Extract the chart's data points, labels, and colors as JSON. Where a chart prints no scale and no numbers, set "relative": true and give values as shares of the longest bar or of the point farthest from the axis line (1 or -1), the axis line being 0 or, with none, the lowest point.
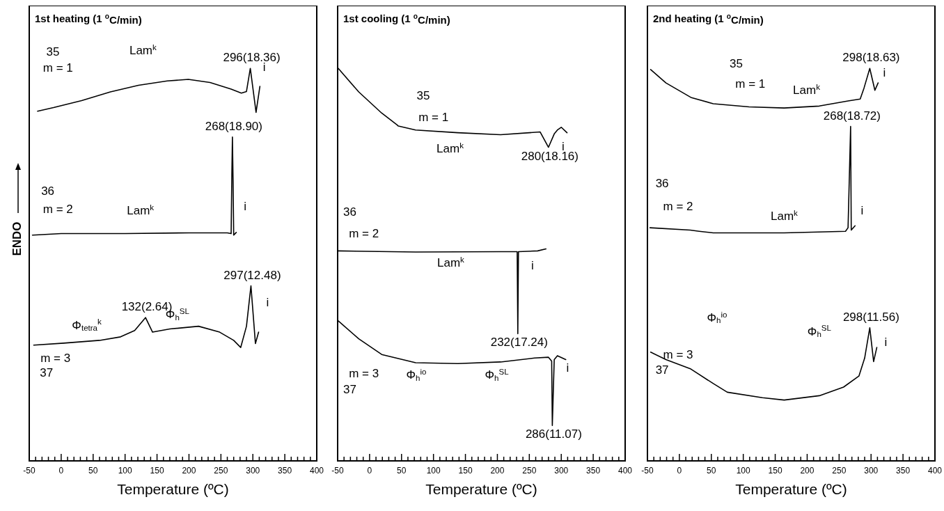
{
  "chart_data": [
    {
      "type": "line",
      "title": "1st heating (1 $^{o}$C/min)",
      "xlabel": "Temperature (ºC)",
      "ylabel": "ENDO",
      "relative": true,
      "xlim": [
        -50,
        400
      ],
      "xticks": [
        -50,
        {
          "value": -40,
          "label": null
        },
        {
          "value": -30,
          "label": null
        },
        {
          "value": -20,
          "label": null
        },
        {
          "value": -10,
          "label": null
        },
        0,
        {
          "value": 10,
          "label": null
        },
        {
          "value": 20,
          "label": null
        },
        {
          "value": 30,
          "label": null
        },
        {
          "value": 40,
          "label": null
        },
        50,
        {
          "value": 60,
          "label": null
        },
        {
          "value": 70,
          "label": null
        },
        {
          "value": 80,
          "label": null
        },
        {
          "value": 90,
          "label": null
        },
        100,
        {
          "value": 110,
          "label": null
        },
        {
          "value": 120,
          "label": null
        },
        {
          "value": 130,
          "label": null
        },
        {
          "value": 140,
          "label": null
        },
        150,
        {
          "value": 160,
          "label": null
        },
        {
          "value": 170,
          "label": null
        },
        {
          "value": 180,
          "label": null
        },
        {
          "value": 190,
          "label": null
        },
        200,
        {
          "value": 210,
          "label": null
        },
        {
          "value": 220,
          "label": null
        },
        {
          "value": 230,
          "label": null
        },
        {
          "value": 240,
          "label": null
        },
        250,
        {
          "value": 260,
          "label": null
        },
        {
          "value": 270,
          "label": null
        },
        {
          "value": 280,
          "label": null
        },
        {
          "value": 290,
          "label": null
        },
        300,
        {
          "value": 310,
          "label": null
        },
        {
          "value": 320,
          "label": null
        },
        {
          "value": 330,
          "label": null
        },
        {
          "value": 340,
          "label": null
        },
        350,
        {
          "value": 360,
          "label": null
        },
        {
          "value": 370,
          "label": null
        },
        {
          "value": 380,
          "label": null
        },
        {
          "value": 390,
          "label": null
        },
        400
      ],
      "series": [
        {
          "color": "#000000",
          "x": [
            -37,
            -12,
            32,
            77,
            121,
            166,
            199,
            233,
            266,
            282,
            290,
            296,
            305,
            311
          ],
          "values": [
            0.891,
            0.9,
            0.918,
            0.94,
            0.957,
            0.968,
            0.972,
            0.964,
            0.947,
            0.937,
            0.941,
            1,
            0.888,
            0.954
          ]
        },
        {
          "color": "#000000",
          "x": [
            -45,
            0,
            100,
            200,
            260,
            266,
            267,
            268,
            269,
            270,
            274
          ],
          "values": [
            0.575,
            0.579,
            0.579,
            0.581,
            0.581,
            0.579,
            0.716,
            0.825,
            0.716,
            0.575,
            0.582
          ]
        },
        {
          "color": "#000000",
          "x": [
            -43,
            4,
            60,
            93,
            115,
            132,
            143,
            170,
            215,
            248,
            270,
            281,
            290,
            297,
            304,
            309
          ],
          "values": [
            0.295,
            0.3,
            0.307,
            0.316,
            0.332,
            0.365,
            0.328,
            0.336,
            0.343,
            0.328,
            0.307,
            0.289,
            0.343,
            0.446,
            0.299,
            0.328
          ]
        }
      ],
      "annotations": [
        "35",
        "m = 1",
        "Lam$^{k}$",
        "i",
        "36",
        "m = 2",
        "Lam$^{k}$",
        "i",
        "Φ$_{h}$$^{SL}$",
        "Φ$_{tetra}$$^{k}$",
        "i",
        "m = 3",
        "37",
        {
          "text": "296(18.36)",
          "x": 296,
          "y": 1
        },
        {
          "text": "268(18.90)",
          "x": 268,
          "y": 0.825
        },
        {
          "text": "297(12.48)",
          "x": 297,
          "y": 0.446
        },
        {
          "text": "132(2.64)",
          "x": 132,
          "y": 0.365
        }
      ]
    },
    {
      "type": "line",
      "title": "1st cooling (1 $^{o}$C/min)",
      "xlabel": "Temperature (ºC)",
      "relative": true,
      "xlim": [
        -50,
        400
      ],
      "xticks": [
        -50,
        {
          "value": -40,
          "label": null
        },
        {
          "value": -30,
          "label": null
        },
        {
          "value": -20,
          "label": null
        },
        {
          "value": -10,
          "label": null
        },
        0,
        {
          "value": 10,
          "label": null
        },
        {
          "value": 20,
          "label": null
        },
        {
          "value": 30,
          "label": null
        },
        {
          "value": 40,
          "label": null
        },
        50,
        {
          "value": 60,
          "label": null
        },
        {
          "value": 70,
          "label": null
        },
        {
          "value": 80,
          "label": null
        },
        {
          "value": 90,
          "label": null
        },
        100,
        {
          "value": 110,
          "label": null
        },
        {
          "value": 120,
          "label": null
        },
        {
          "value": 130,
          "label": null
        },
        {
          "value": 140,
          "label": null
        },
        150,
        {
          "value": 160,
          "label": null
        },
        {
          "value": 170,
          "label": null
        },
        {
          "value": 180,
          "label": null
        },
        {
          "value": 190,
          "label": null
        },
        200,
        {
          "value": 210,
          "label": null
        },
        {
          "value": 220,
          "label": null
        },
        {
          "value": 230,
          "label": null
        },
        {
          "value": 240,
          "label": null
        },
        250,
        {
          "value": 260,
          "label": null
        },
        {
          "value": 270,
          "label": null
        },
        {
          "value": 280,
          "label": null
        },
        {
          "value": 290,
          "label": null
        },
        300,
        {
          "value": 310,
          "label": null
        },
        {
          "value": 320,
          "label": null
        },
        {
          "value": 330,
          "label": null
        },
        {
          "value": 340,
          "label": null
        },
        350,
        {
          "value": 360,
          "label": null
        },
        {
          "value": 370,
          "label": null
        },
        {
          "value": 380,
          "label": null
        },
        {
          "value": 390,
          "label": null
        },
        400
      ],
      "series": [
        {
          "color": "#000000",
          "x": [
            -49,
            -17,
            19,
            43,
            45,
            72,
            138,
            205,
            267,
            280,
            289,
            294,
            300,
            309
          ],
          "values": [
            1,
            0.94,
            0.886,
            0.856,
            0.853,
            0.843,
            0.836,
            0.831,
            0.838,
            0.799,
            0.833,
            0.843,
            0.85,
            0.836
          ]
        },
        {
          "color": "#000000",
          "x": [
            -50,
            72,
            205,
            231,
            232,
            233,
            263,
            276
          ],
          "values": [
            0.535,
            0.532,
            0.533,
            0.533,
            0.324,
            0.533,
            0.535,
            0.54
          ]
        },
        {
          "color": "#000000",
          "x": [
            -50,
            -17,
            19,
            72,
            138,
            205,
            258,
            280,
            285,
            286,
            289,
            294,
            307
          ],
          "values": [
            0.358,
            0.311,
            0.271,
            0.25,
            0.248,
            0.252,
            0.262,
            0.264,
            0.254,
            0.09,
            0.258,
            0.268,
            0.258
          ]
        }
      ],
      "annotations": [
        "35",
        "m = 1",
        "Lam$^{k}$",
        "i",
        "36",
        "m = 2",
        "Lam$^{k}$",
        "i",
        "m = 3",
        "Φ$_{h}$$^{io}$",
        "Φ$_{h}$$^{SL}$",
        "i",
        "37",
        {
          "text": "280(18.16)",
          "x": 280,
          "y": 0.799
        },
        {
          "text": "232(17.24)",
          "x": 232,
          "y": 0.324
        },
        {
          "text": "286(11.07)",
          "x": 286,
          "y": 0.09
        }
      ]
    },
    {
      "type": "line",
      "title": "2nd heating (1 $^{o}$C/min)",
      "xlabel": "Temperature (ºC)",
      "relative": true,
      "xlim": [
        -50,
        400
      ],
      "xticks": [
        -50,
        {
          "value": -40,
          "label": null
        },
        {
          "value": -30,
          "label": null
        },
        {
          "value": -20,
          "label": null
        },
        {
          "value": -10,
          "label": null
        },
        0,
        {
          "value": 10,
          "label": null
        },
        {
          "value": 20,
          "label": null
        },
        {
          "value": 30,
          "label": null
        },
        {
          "value": 40,
          "label": null
        },
        50,
        {
          "value": 60,
          "label": null
        },
        {
          "value": 70,
          "label": null
        },
        {
          "value": 80,
          "label": null
        },
        {
          "value": 90,
          "label": null
        },
        100,
        {
          "value": 110,
          "label": null
        },
        {
          "value": 120,
          "label": null
        },
        {
          "value": 130,
          "label": null
        },
        {
          "value": 140,
          "label": null
        },
        150,
        {
          "value": 160,
          "label": null
        },
        {
          "value": 170,
          "label": null
        },
        {
          "value": 180,
          "label": null
        },
        {
          "value": 190,
          "label": null
        },
        200,
        {
          "value": 210,
          "label": null
        },
        {
          "value": 220,
          "label": null
        },
        {
          "value": 230,
          "label": null
        },
        {
          "value": 240,
          "label": null
        },
        250,
        {
          "value": 260,
          "label": null
        },
        {
          "value": 270,
          "label": null
        },
        {
          "value": 280,
          "label": null
        },
        {
          "value": 290,
          "label": null
        },
        300,
        {
          "value": 310,
          "label": null
        },
        {
          "value": 320,
          "label": null
        },
        {
          "value": 330,
          "label": null
        },
        {
          "value": 340,
          "label": null
        },
        350,
        {
          "value": 360,
          "label": null
        },
        {
          "value": 370,
          "label": null
        },
        {
          "value": 380,
          "label": null
        },
        {
          "value": 390,
          "label": null
        },
        400
      ],
      "series": [
        {
          "color": "#000000",
          "x": [
            -45,
            -21,
            18,
            53,
            109,
            164,
            219,
            264,
            283,
            289,
            298,
            306,
            311
          ],
          "values": [
            0.997,
            0.963,
            0.926,
            0.91,
            0.902,
            0.899,
            0.904,
            0.917,
            0.922,
            0.95,
            1,
            0.944,
            0.963
          ]
        },
        {
          "color": "#000000",
          "x": [
            -46,
            17,
            31,
            53,
            164,
            260,
            264,
            268,
            269,
            275
          ],
          "values": [
            0.594,
            0.588,
            0.585,
            0.581,
            0.581,
            0.585,
            0.594,
            0.852,
            0.588,
            0.599
          ]
        },
        {
          "color": "#000000",
          "x": [
            -45,
            -21,
            18,
            53,
            75,
            130,
            164,
            219,
            257,
            281,
            290,
            298,
            304,
            309
          ],
          "values": [
            0.277,
            0.258,
            0.234,
            0.197,
            0.175,
            0.161,
            0.155,
            0.166,
            0.188,
            0.216,
            0.262,
            0.339,
            0.253,
            0.289
          ]
        }
      ],
      "annotations": [
        "35",
        "m = 1",
        "Lam$^{k}$",
        "i",
        "36",
        "m = 2",
        "Lam$^{k}$",
        "i",
        "Φ$_{h}$$^{io}$",
        "Φ$_{h}$$^{SL}$",
        "i",
        "m = 3",
        "37",
        {
          "text": "298(18.63)",
          "x": 298,
          "y": 1
        },
        {
          "text": "268(18.72)",
          "x": 268,
          "y": 0.852
        },
        {
          "text": "298(11.56)",
          "x": 298,
          "y": 0.339
        }
      ]
    }
  ]
}
